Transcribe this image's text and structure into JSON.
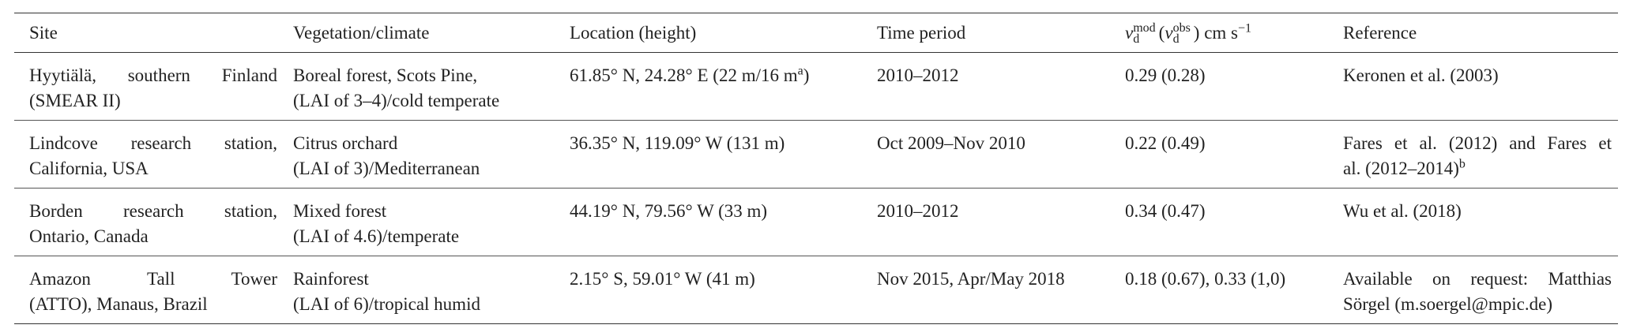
{
  "table": {
    "header": [
      "Site",
      "Vegetation/climate",
      "Location (height)",
      "Time period",
      [
        {
          "t": "v",
          "f": "i"
        },
        {
          "sub": "d",
          "sup": "mod"
        },
        "(",
        {
          "t": "v",
          "f": "i"
        },
        {
          "sub": "d",
          "sup": "obs"
        },
        ") cm s",
        {
          "sup": "−1"
        }
      ],
      "Reference"
    ],
    "rows": [
      [
        [
          "Hyytiälä, southern Finland",
          "(SMEAR II)"
        ],
        [
          "Boreal forest, Scots Pine,",
          "(LAI of 3–4)/cold temperate"
        ],
        [
          [
            "61.85° N, 24.28° E (22 m/16 m",
            {
              "sup": "a"
            },
            ")"
          ]
        ],
        [
          "2010–2012"
        ],
        [
          "0.29 (0.28)"
        ],
        [
          "Keronen et al. (2003)"
        ]
      ],
      [
        [
          "Lindcove research station,",
          "California, USA"
        ],
        [
          "Citrus orchard",
          "(LAI of 3)/Mediterranean"
        ],
        [
          "36.35° N, 119.09° W (131 m)"
        ],
        [
          "Oct 2009–Nov 2010"
        ],
        [
          "0.22 (0.49)"
        ],
        [
          "Fares et al. (2012) and Fares et",
          [
            "al. (2012–2014)",
            {
              "sup": "b"
            }
          ]
        ]
      ],
      [
        [
          "Borden research station,",
          "Ontario, Canada"
        ],
        [
          "Mixed forest",
          "(LAI of 4.6)/temperate"
        ],
        [
          "44.19° N, 79.56° W (33 m)"
        ],
        [
          "2010–2012"
        ],
        [
          "0.34 (0.47)"
        ],
        [
          "Wu et al. (2018)"
        ]
      ],
      [
        [
          "Amazon Tall Tower",
          "(ATTO), Manaus, Brazil"
        ],
        [
          "Rainforest",
          "(LAI of 6)/tropical humid"
        ],
        [
          "2.15° S, 59.01° W (41 m)"
        ],
        [
          "Nov 2015, Apr/May 2018"
        ],
        [
          "0.18 (0.67), 0.33 (1,0)"
        ],
        [
          "Available on request: Matthias",
          "Sörgel (m.soergel@mpic.de)"
        ]
      ]
    ]
  }
}
